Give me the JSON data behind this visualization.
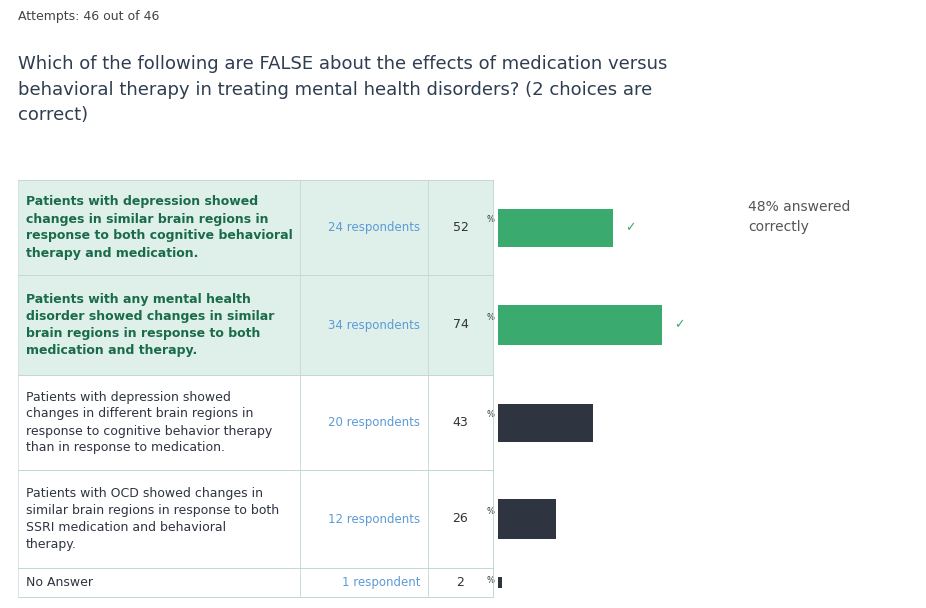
{
  "title_attempts": "Attempts: 46 out of 46",
  "question": "Which of the following are FALSE about the effects of medication versus\nbehavioral therapy in treating mental health disorders? (2 choices are\ncorrect)",
  "rows": [
    {
      "label": "Patients with depression showed\nchanges in similar brain regions in\nresponse to both cognitive behavioral\ntherapy and medication.",
      "respondents": "24 respondents",
      "percent": 52,
      "percent_label": "52",
      "correct": true,
      "bar_color": "#3aaa6e",
      "row_bg": "#dff0eb",
      "label_color": "#1a6b4a",
      "label_bold": true
    },
    {
      "label": "Patients with any mental health\ndisorder showed changes in similar\nbrain regions in response to both\nmedication and therapy.",
      "respondents": "34 respondents",
      "percent": 74,
      "percent_label": "74",
      "correct": true,
      "bar_color": "#3aaa6e",
      "row_bg": "#dff0eb",
      "label_color": "#1a6b4a",
      "label_bold": true
    },
    {
      "label": "Patients with depression showed\nchanges in different brain regions in\nresponse to cognitive behavior therapy\nthan in response to medication.",
      "respondents": "20 respondents",
      "percent": 43,
      "percent_label": "43",
      "correct": false,
      "bar_color": "#2e3440",
      "row_bg": "#ffffff",
      "label_color": "#2e3440",
      "label_bold": false
    },
    {
      "label": "Patients with OCD showed changes in\nsimilar brain regions in response to both\nSSRI medication and behavioral\ntherapy.",
      "respondents": "12 respondents",
      "percent": 26,
      "percent_label": "26",
      "correct": false,
      "bar_color": "#2e3440",
      "row_bg": "#ffffff",
      "label_color": "#2e3440",
      "label_bold": false
    },
    {
      "label": "No Answer",
      "respondents": "1 respondent",
      "percent": 2,
      "percent_label": "2",
      "correct": false,
      "bar_color": "#2e3440",
      "row_bg": "#ffffff",
      "label_color": "#2e3440",
      "label_bold": false
    }
  ],
  "respondents_color": "#5b9bd5",
  "checkmark": "✓",
  "checkmark_color": "#3aaa6e",
  "answered_correctly_text": "48% answered\ncorrectly",
  "answered_correctly_color": "#555555",
  "bg_color": "#ffffff",
  "fig_width": 9.26,
  "fig_height": 6.08,
  "dpi": 100
}
